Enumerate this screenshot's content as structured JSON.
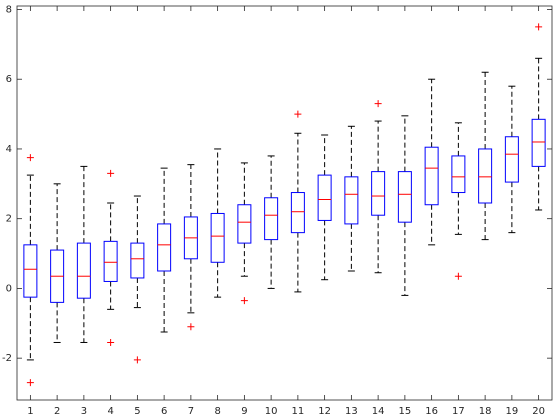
{
  "chart_data": {
    "type": "box",
    "categories": [
      "1",
      "2",
      "3",
      "4",
      "5",
      "6",
      "7",
      "8",
      "9",
      "10",
      "11",
      "12",
      "13",
      "14",
      "15",
      "16",
      "17",
      "18",
      "19",
      "20"
    ],
    "boxes": [
      {
        "low": -2.05,
        "q1": -0.25,
        "median": 0.55,
        "q3": 1.25,
        "high": 3.25,
        "outliers": [
          3.75,
          -2.7
        ]
      },
      {
        "low": -1.55,
        "q1": -0.4,
        "median": 0.35,
        "q3": 1.1,
        "high": 3.0
      },
      {
        "low": -1.55,
        "q1": -0.28,
        "median": 0.35,
        "q3": 1.3,
        "high": 3.5
      },
      {
        "low": -0.6,
        "q1": 0.2,
        "median": 0.75,
        "q3": 1.35,
        "high": 2.45,
        "outliers": [
          3.3,
          -1.55
        ]
      },
      {
        "low": -0.55,
        "q1": 0.3,
        "median": 0.85,
        "q3": 1.3,
        "high": 2.65,
        "outliers": [
          -2.05
        ]
      },
      {
        "low": -1.25,
        "q1": 0.5,
        "median": 1.25,
        "q3": 1.85,
        "high": 3.45
      },
      {
        "low": -0.7,
        "q1": 0.85,
        "median": 1.45,
        "q3": 2.05,
        "high": 3.55,
        "outliers": [
          -1.1
        ]
      },
      {
        "low": -0.25,
        "q1": 0.75,
        "median": 1.5,
        "q3": 2.15,
        "high": 4.0
      },
      {
        "low": 0.35,
        "q1": 1.3,
        "median": 1.9,
        "q3": 2.4,
        "high": 3.6,
        "outliers": [
          -0.35
        ]
      },
      {
        "low": 0.0,
        "q1": 1.4,
        "median": 2.1,
        "q3": 2.6,
        "high": 3.8
      },
      {
        "low": -0.1,
        "q1": 1.6,
        "median": 2.2,
        "q3": 2.75,
        "high": 4.45,
        "outliers": [
          5.0
        ]
      },
      {
        "low": 0.25,
        "q1": 1.95,
        "median": 2.55,
        "q3": 3.25,
        "high": 4.4
      },
      {
        "low": 0.5,
        "q1": 1.85,
        "median": 2.7,
        "q3": 3.2,
        "high": 4.65
      },
      {
        "low": 0.45,
        "q1": 2.1,
        "median": 2.65,
        "q3": 3.35,
        "high": 4.8,
        "outliers": [
          5.3
        ]
      },
      {
        "low": -0.2,
        "q1": 1.9,
        "median": 2.7,
        "q3": 3.35,
        "high": 4.95
      },
      {
        "low": 1.25,
        "q1": 2.4,
        "median": 3.45,
        "q3": 4.05,
        "high": 6.0
      },
      {
        "low": 1.55,
        "q1": 2.75,
        "median": 3.2,
        "q3": 3.8,
        "high": 4.75,
        "outliers": [
          0.35
        ]
      },
      {
        "low": 1.4,
        "q1": 2.45,
        "median": 3.2,
        "q3": 4.0,
        "high": 6.2
      },
      {
        "low": 1.6,
        "q1": 3.05,
        "median": 3.85,
        "q3": 4.35,
        "high": 5.8
      },
      {
        "low": 2.25,
        "q1": 3.5,
        "median": 4.2,
        "q3": 4.85,
        "high": 6.6,
        "outliers": [
          7.5
        ]
      }
    ],
    "box_color": "#0000ff",
    "median_color": "#ff0000",
    "outlier_color": "#ff0000",
    "whisker_color": "#000000",
    "ylim": [
      -3.2,
      8.1
    ],
    "yticks": [
      -2,
      0,
      2,
      4,
      6,
      8
    ]
  }
}
